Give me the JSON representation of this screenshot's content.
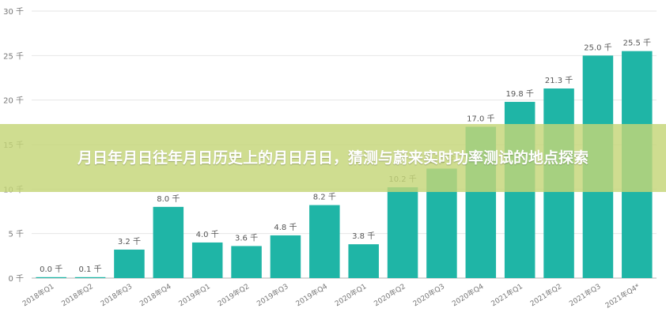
{
  "banner": {
    "title": "月日年月日往年月日历史上的月日月日，猜测与蔚来实时功率测试的地点探索"
  },
  "colors": {
    "bar": "#1fb5a6",
    "grid": "#e6e6e6",
    "axis": "#b5b5b5",
    "text": "#777777"
  },
  "chart_data": {
    "type": "bar",
    "categories": [
      "2018年Q1",
      "2018年Q2",
      "2018年Q3",
      "2018年Q4",
      "2019年Q1",
      "2019年Q2",
      "2019年Q3",
      "2019年Q4",
      "2020年Q1",
      "2020年Q2",
      "2020年Q3",
      "2020年Q4",
      "2021年Q1",
      "2021年Q2",
      "2021年Q3",
      "2021年Q4*"
    ],
    "values": [
      0.0,
      0.1,
      3.2,
      8.0,
      4.0,
      3.6,
      4.8,
      8.2,
      3.8,
      10.2,
      12.3,
      17.0,
      19.8,
      21.3,
      25.0,
      25.5
    ],
    "data_labels": [
      "0.0 千",
      "0.1 千",
      "3.2 千",
      "8.0 千",
      "4.0 千",
      "3.6 千",
      "4.8 千",
      "8.2 千",
      "3.8 千",
      "10.2 千",
      "12.3 千",
      "17.0 千",
      "19.8 千",
      "21.3 千",
      "25.0 千",
      "25.5 千"
    ],
    "y_ticks": [
      0,
      5,
      10,
      15,
      20,
      25,
      30
    ],
    "y_tick_labels": [
      "0 千",
      "5 千",
      "10 千",
      "15 千",
      "20 千",
      "25 千",
      "30 千"
    ],
    "ylim": [
      0,
      30
    ],
    "grid": true
  }
}
